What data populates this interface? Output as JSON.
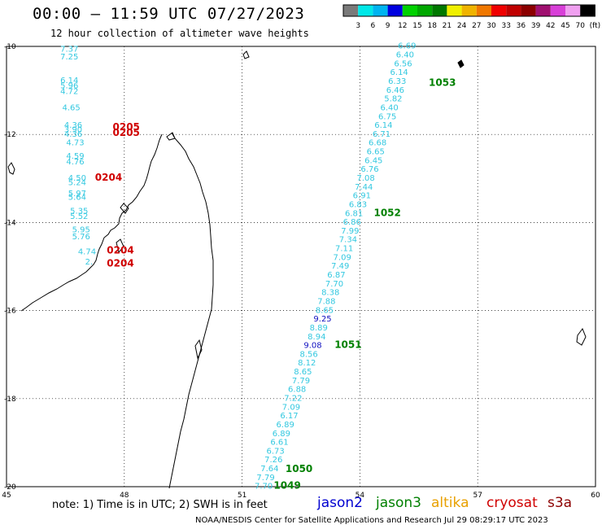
{
  "title": "00:00 – 11:59 UTC 07/27/2023",
  "subtitle": "12 hour collection of altimeter wave heights",
  "colorbar": {
    "colors": [
      "#7a7a7a",
      "#00e8e8",
      "#00b4f0",
      "#0000e0",
      "#00d200",
      "#00a800",
      "#007800",
      "#f0f000",
      "#f0b400",
      "#f07800",
      "#f00000",
      "#c00000",
      "#8c0000",
      "#a01070",
      "#d840d8",
      "#f0a0f0",
      "#000000"
    ],
    "labels": [
      "3",
      "6",
      "9",
      "12",
      "15",
      "18",
      "21",
      "24",
      "27",
      "30",
      "33",
      "36",
      "39",
      "42",
      "45",
      "70"
    ],
    "unit": "(ft)"
  },
  "axes": {
    "lat_labels": [
      "-10",
      "-12",
      "-14",
      "-16",
      "-18",
      "-20"
    ],
    "lon_labels": [
      "45",
      "48",
      "51",
      "54",
      "57",
      "60"
    ]
  },
  "map": {
    "lon_range": [
      45,
      60
    ],
    "lat_range": [
      -10,
      -20
    ],
    "swh_colors": {
      "cyan": "#33c8e0",
      "blue": "#1010c0",
      "time": "#d00000",
      "time_green": "#008000"
    },
    "left_track": [
      {
        "lon": 46.6,
        "lat": -10.12,
        "v": "7.37",
        "c": "cyan"
      },
      {
        "lon": 46.6,
        "lat": -10.3,
        "v": "7.25",
        "c": "cyan"
      },
      {
        "lon": 46.6,
        "lat": -10.83,
        "v": "6.14",
        "c": "cyan"
      },
      {
        "lon": 46.6,
        "lat": -10.95,
        "v": "5.96",
        "c": "cyan"
      },
      {
        "lon": 46.6,
        "lat": -11.08,
        "v": "4.72",
        "c": "cyan"
      },
      {
        "lon": 46.65,
        "lat": -11.45,
        "v": "4.65",
        "c": "cyan"
      },
      {
        "lon": 46.7,
        "lat": -11.85,
        "v": "4.36",
        "c": "cyan"
      },
      {
        "lon": 46.7,
        "lat": -11.95,
        "v": "3.90",
        "c": "cyan"
      },
      {
        "lon": 46.7,
        "lat": -12.05,
        "v": "4.36",
        "c": "cyan"
      },
      {
        "lon": 46.75,
        "lat": -12.25,
        "v": "4.73",
        "c": "cyan"
      },
      {
        "lon": 46.75,
        "lat": -12.55,
        "v": "4.59",
        "c": "cyan"
      },
      {
        "lon": 46.75,
        "lat": -12.68,
        "v": "4.76",
        "c": "cyan"
      },
      {
        "lon": 46.8,
        "lat": -13.05,
        "v": "4.50",
        "c": "cyan"
      },
      {
        "lon": 46.8,
        "lat": -13.15,
        "v": "5.24",
        "c": "cyan"
      },
      {
        "lon": 46.8,
        "lat": -13.4,
        "v": "5.97",
        "c": "cyan"
      },
      {
        "lon": 46.8,
        "lat": -13.48,
        "v": "5.64",
        "c": "cyan"
      },
      {
        "lon": 46.85,
        "lat": -13.8,
        "v": "5.35",
        "c": "cyan"
      },
      {
        "lon": 46.85,
        "lat": -13.92,
        "v": "5.52",
        "c": "cyan"
      },
      {
        "lon": 46.9,
        "lat": -14.22,
        "v": "5.95",
        "c": "cyan"
      },
      {
        "lon": 46.9,
        "lat": -14.38,
        "v": "5.76",
        "c": "cyan"
      },
      {
        "lon": 47.05,
        "lat": -14.72,
        "v": "4.74",
        "c": "cyan"
      },
      {
        "lon": 47.1,
        "lat": -14.95,
        "v": "2.",
        "c": "cyan"
      }
    ],
    "left_times": [
      {
        "lon": 48.05,
        "lat": -11.9,
        "v": "0205",
        "c": "time"
      },
      {
        "lon": 48.05,
        "lat": -12.03,
        "v": "0205",
        "c": "time"
      },
      {
        "lon": 47.6,
        "lat": -13.05,
        "v": "0204",
        "c": "time"
      },
      {
        "lon": 47.9,
        "lat": -14.7,
        "v": "0204",
        "c": "time"
      },
      {
        "lon": 47.9,
        "lat": -15.0,
        "v": "0204",
        "c": "time"
      }
    ],
    "right_track": [
      {
        "lon": 55.2,
        "lat": -10.05,
        "v": "6.69",
        "c": "cyan"
      },
      {
        "lon": 55.15,
        "lat": -10.25,
        "v": "6.40",
        "c": "cyan"
      },
      {
        "lon": 55.1,
        "lat": -10.45,
        "v": "6.56",
        "c": "cyan"
      },
      {
        "lon": 55.0,
        "lat": -10.65,
        "v": "6.14",
        "c": "cyan"
      },
      {
        "lon": 54.95,
        "lat": -10.85,
        "v": "6.33",
        "c": "cyan"
      },
      {
        "lon": 54.9,
        "lat": -11.05,
        "v": "6.46",
        "c": "cyan"
      },
      {
        "lon": 54.85,
        "lat": -11.25,
        "v": "5.82",
        "c": "cyan"
      },
      {
        "lon": 54.75,
        "lat": -11.45,
        "v": "6.40",
        "c": "cyan"
      },
      {
        "lon": 54.7,
        "lat": -11.65,
        "v": "6.75",
        "c": "cyan"
      },
      {
        "lon": 54.6,
        "lat": -11.85,
        "v": "6.14",
        "c": "cyan"
      },
      {
        "lon": 54.55,
        "lat": -12.05,
        "v": "6.71",
        "c": "cyan"
      },
      {
        "lon": 54.45,
        "lat": -12.25,
        "v": "6.68",
        "c": "cyan"
      },
      {
        "lon": 54.4,
        "lat": -12.45,
        "v": "6.65",
        "c": "cyan"
      },
      {
        "lon": 54.35,
        "lat": -12.65,
        "v": "6.45",
        "c": "cyan"
      },
      {
        "lon": 54.25,
        "lat": -12.85,
        "v": "6.76",
        "c": "cyan"
      },
      {
        "lon": 54.15,
        "lat": -13.05,
        "v": "7.08",
        "c": "cyan"
      },
      {
        "lon": 54.1,
        "lat": -13.25,
        "v": "7.44",
        "c": "cyan"
      },
      {
        "lon": 54.05,
        "lat": -13.45,
        "v": "6.91",
        "c": "cyan"
      },
      {
        "lon": 53.95,
        "lat": -13.65,
        "v": "6.83",
        "c": "cyan"
      },
      {
        "lon": 53.85,
        "lat": -13.85,
        "v": "6.81",
        "c": "cyan"
      },
      {
        "lon": 53.8,
        "lat": -14.05,
        "v": "6.86",
        "c": "cyan"
      },
      {
        "lon": 53.75,
        "lat": -14.25,
        "v": "7.99",
        "c": "cyan"
      },
      {
        "lon": 53.7,
        "lat": -14.45,
        "v": "7.34",
        "c": "cyan"
      },
      {
        "lon": 53.6,
        "lat": -14.65,
        "v": "7.11",
        "c": "cyan"
      },
      {
        "lon": 53.55,
        "lat": -14.85,
        "v": "7.09",
        "c": "cyan"
      },
      {
        "lon": 53.5,
        "lat": -15.05,
        "v": "7.49",
        "c": "cyan"
      },
      {
        "lon": 53.4,
        "lat": -15.25,
        "v": "6.87",
        "c": "cyan"
      },
      {
        "lon": 53.35,
        "lat": -15.45,
        "v": "7.70",
        "c": "cyan"
      },
      {
        "lon": 53.25,
        "lat": -15.65,
        "v": "8.38",
        "c": "cyan"
      },
      {
        "lon": 53.15,
        "lat": -15.85,
        "v": "7.88",
        "c": "cyan"
      },
      {
        "lon": 53.1,
        "lat": -16.05,
        "v": "8.65",
        "c": "cyan"
      },
      {
        "lon": 53.05,
        "lat": -16.25,
        "v": "9.25",
        "c": "blue"
      },
      {
        "lon": 52.95,
        "lat": -16.45,
        "v": "8.89",
        "c": "cyan"
      },
      {
        "lon": 52.9,
        "lat": -16.65,
        "v": "8.94",
        "c": "cyan"
      },
      {
        "lon": 52.8,
        "lat": -16.85,
        "v": "9.08",
        "c": "blue"
      },
      {
        "lon": 52.7,
        "lat": -17.05,
        "v": "8.56",
        "c": "cyan"
      },
      {
        "lon": 52.65,
        "lat": -17.25,
        "v": "8.12",
        "c": "cyan"
      },
      {
        "lon": 52.55,
        "lat": -17.45,
        "v": "8.65",
        "c": "cyan"
      },
      {
        "lon": 52.5,
        "lat": -17.65,
        "v": "7.79",
        "c": "cyan"
      },
      {
        "lon": 52.4,
        "lat": -17.85,
        "v": "6.88",
        "c": "cyan"
      },
      {
        "lon": 52.3,
        "lat": -18.05,
        "v": "7.22",
        "c": "cyan"
      },
      {
        "lon": 52.25,
        "lat": -18.25,
        "v": "7.09",
        "c": "cyan"
      },
      {
        "lon": 52.2,
        "lat": -18.45,
        "v": "6.17",
        "c": "cyan"
      },
      {
        "lon": 52.1,
        "lat": -18.65,
        "v": "6.89",
        "c": "cyan"
      },
      {
        "lon": 52.0,
        "lat": -18.85,
        "v": "6.89",
        "c": "cyan"
      },
      {
        "lon": 51.95,
        "lat": -19.05,
        "v": "6.61",
        "c": "cyan"
      },
      {
        "lon": 51.85,
        "lat": -19.25,
        "v": "6.73",
        "c": "cyan"
      },
      {
        "lon": 51.8,
        "lat": -19.45,
        "v": "7.26",
        "c": "cyan"
      },
      {
        "lon": 51.7,
        "lat": -19.65,
        "v": "7.64",
        "c": "cyan"
      },
      {
        "lon": 51.6,
        "lat": -19.85,
        "v": "7.79",
        "c": "cyan"
      },
      {
        "lon": 51.55,
        "lat": -20.05,
        "v": "7.70",
        "c": "cyan"
      }
    ],
    "right_times": [
      {
        "lon": 56.1,
        "lat": -10.9,
        "v": "1053",
        "c": "time_green"
      },
      {
        "lon": 54.7,
        "lat": -13.85,
        "v": "1052",
        "c": "time_green"
      },
      {
        "lon": 53.7,
        "lat": -16.85,
        "v": "1051",
        "c": "time_green"
      },
      {
        "lon": 52.45,
        "lat": -19.67,
        "v": "1050",
        "c": "time_green"
      },
      {
        "lon": 52.15,
        "lat": -20.05,
        "v": "1049",
        "c": "time_green"
      }
    ]
  },
  "note": "note: 1) Time is in UTC; 2) SWH is in feet",
  "satellites": [
    {
      "name": "jason2",
      "color": "#0000d0"
    },
    {
      "name": "jason3",
      "color": "#008000"
    },
    {
      "name": "altika",
      "color": "#e8a000"
    },
    {
      "name": "cryosat",
      "color": "#d00000"
    },
    {
      "name": "s3a",
      "color": "#8c0000"
    }
  ],
  "footer": "NOAA/NESDIS Center for Satellite Applications and Research    Jul 29 08:29:17 UTC 2023"
}
